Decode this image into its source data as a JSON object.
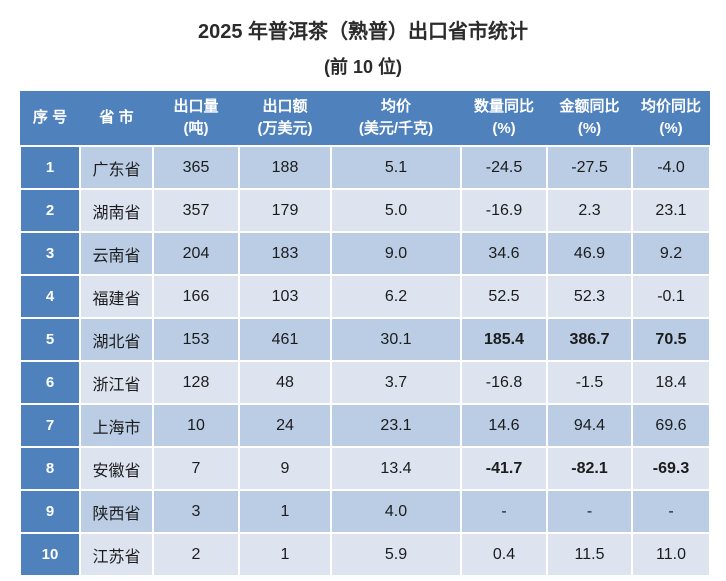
{
  "chart_data": {
    "type": "table",
    "title": "2025 年普洱茶（熟普）出口省市统计",
    "subtitle": "(前 10 位)",
    "columns": [
      {
        "label": "序 号",
        "unit": ""
      },
      {
        "label": "省 市",
        "unit": ""
      },
      {
        "label": "出口量",
        "unit": "(吨)"
      },
      {
        "label": "出口额",
        "unit": "(万美元)"
      },
      {
        "label": "均价",
        "unit": "(美元/千克)"
      },
      {
        "label": "数量同比",
        "unit": "(%)"
      },
      {
        "label": "金额同比",
        "unit": "(%)"
      },
      {
        "label": "均价同比",
        "unit": "(%)"
      }
    ],
    "rows": [
      {
        "rank": "1",
        "province": "广东省",
        "export_qty": "365",
        "export_value": "188",
        "avg_price": "5.1",
        "qty_yoy": "-24.5",
        "value_yoy": "-27.5",
        "price_yoy": "-4.0",
        "yoy_color": "default"
      },
      {
        "rank": "2",
        "province": "湖南省",
        "export_qty": "357",
        "export_value": "179",
        "avg_price": "5.0",
        "qty_yoy": "-16.9",
        "value_yoy": "2.3",
        "price_yoy": "23.1",
        "yoy_color": "default"
      },
      {
        "rank": "3",
        "province": "云南省",
        "export_qty": "204",
        "export_value": "183",
        "avg_price": "9.0",
        "qty_yoy": "34.6",
        "value_yoy": "46.9",
        "price_yoy": "9.2",
        "yoy_color": "default"
      },
      {
        "rank": "4",
        "province": "福建省",
        "export_qty": "166",
        "export_value": "103",
        "avg_price": "6.2",
        "qty_yoy": "52.5",
        "value_yoy": "52.3",
        "price_yoy": "-0.1",
        "yoy_color": "default"
      },
      {
        "rank": "5",
        "province": "湖北省",
        "export_qty": "153",
        "export_value": "461",
        "avg_price": "30.1",
        "qty_yoy": "185.4",
        "value_yoy": "386.7",
        "price_yoy": "70.5",
        "yoy_color": "red"
      },
      {
        "rank": "6",
        "province": "浙江省",
        "export_qty": "128",
        "export_value": "48",
        "avg_price": "3.7",
        "qty_yoy": "-16.8",
        "value_yoy": "-1.5",
        "price_yoy": "18.4",
        "yoy_color": "default"
      },
      {
        "rank": "7",
        "province": "上海市",
        "export_qty": "10",
        "export_value": "24",
        "avg_price": "23.1",
        "qty_yoy": "14.6",
        "value_yoy": "94.4",
        "price_yoy": "69.6",
        "yoy_color": "default"
      },
      {
        "rank": "8",
        "province": "安徽省",
        "export_qty": "7",
        "export_value": "9",
        "avg_price": "13.4",
        "qty_yoy": "-41.7",
        "value_yoy": "-82.1",
        "price_yoy": "-69.3",
        "yoy_color": "green"
      },
      {
        "rank": "9",
        "province": "陕西省",
        "export_qty": "3",
        "export_value": "1",
        "avg_price": "4.0",
        "qty_yoy": "-",
        "value_yoy": "-",
        "price_yoy": "-",
        "yoy_color": "default"
      },
      {
        "rank": "10",
        "province": "江苏省",
        "export_qty": "2",
        "export_value": "1",
        "avg_price": "5.9",
        "qty_yoy": "0.4",
        "value_yoy": "11.5",
        "price_yoy": "11.0",
        "yoy_color": "default"
      }
    ]
  },
  "colors": {
    "header_bg": "#4F81BD",
    "row_band_dark": "#BACDE4",
    "row_band_light": "#DDE4F0",
    "positive_highlight_red": "#FE0000",
    "negative_highlight_green": "#00B050",
    "gridline": "#FFFFFF"
  }
}
